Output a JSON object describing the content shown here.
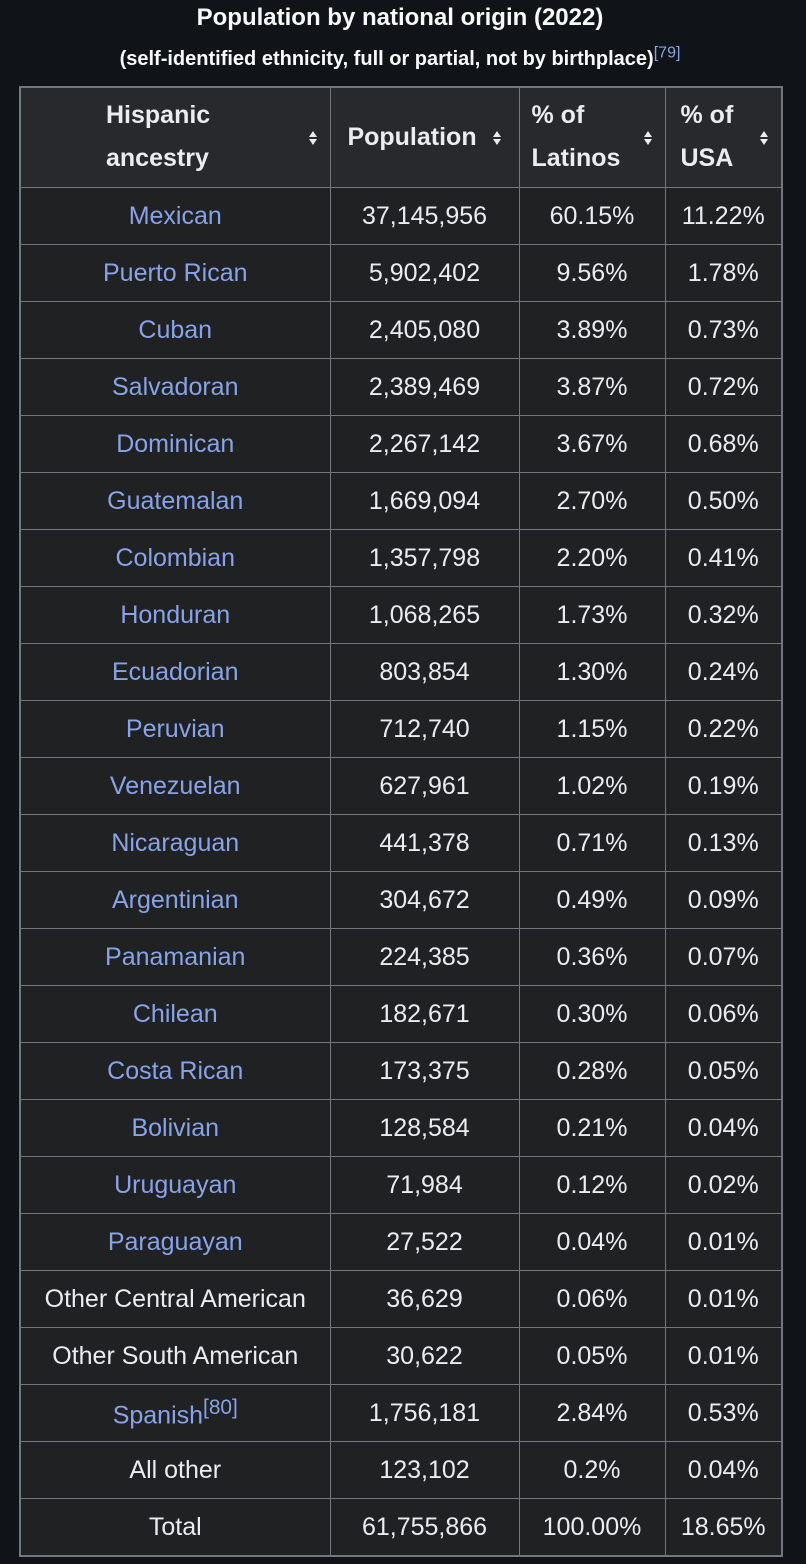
{
  "caption": {
    "title": "Population by national origin (2022)",
    "subtitle": "(self-identified ethnicity, full or partial, not by birthplace)",
    "subtitle_ref": "[79]"
  },
  "table": {
    "headers": [
      {
        "label": "Hispanic ancestry",
        "line1": "Hispanic",
        "line2": "ancestry"
      },
      {
        "label": "Population"
      },
      {
        "label": "% of Latinos",
        "line1": "% of",
        "line2": "Latinos"
      },
      {
        "label": "% of USA",
        "line1": "% of",
        "line2": "USA"
      }
    ],
    "rows": [
      {
        "ancestry": "Mexican",
        "population": "37,145,956",
        "pct_latinos": "60.15%",
        "pct_usa": "11.22%",
        "link": true
      },
      {
        "ancestry": "Puerto Rican",
        "population": "5,902,402",
        "pct_latinos": "9.56%",
        "pct_usa": "1.78%",
        "link": true
      },
      {
        "ancestry": "Cuban",
        "population": "2,405,080",
        "pct_latinos": "3.89%",
        "pct_usa": "0.73%",
        "link": true
      },
      {
        "ancestry": "Salvadoran",
        "population": "2,389,469",
        "pct_latinos": "3.87%",
        "pct_usa": "0.72%",
        "link": true
      },
      {
        "ancestry": "Dominican",
        "population": "2,267,142",
        "pct_latinos": "3.67%",
        "pct_usa": "0.68%",
        "link": true
      },
      {
        "ancestry": "Guatemalan",
        "population": "1,669,094",
        "pct_latinos": "2.70%",
        "pct_usa": "0.50%",
        "link": true
      },
      {
        "ancestry": "Colombian",
        "population": "1,357,798",
        "pct_latinos": "2.20%",
        "pct_usa": "0.41%",
        "link": true
      },
      {
        "ancestry": "Honduran",
        "population": "1,068,265",
        "pct_latinos": "1.73%",
        "pct_usa": "0.32%",
        "link": true
      },
      {
        "ancestry": "Ecuadorian",
        "population": "803,854",
        "pct_latinos": "1.30%",
        "pct_usa": "0.24%",
        "link": true
      },
      {
        "ancestry": "Peruvian",
        "population": "712,740",
        "pct_latinos": "1.15%",
        "pct_usa": "0.22%",
        "link": true
      },
      {
        "ancestry": "Venezuelan",
        "population": "627,961",
        "pct_latinos": "1.02%",
        "pct_usa": "0.19%",
        "link": true
      },
      {
        "ancestry": "Nicaraguan",
        "population": "441,378",
        "pct_latinos": "0.71%",
        "pct_usa": "0.13%",
        "link": true
      },
      {
        "ancestry": "Argentinian",
        "population": "304,672",
        "pct_latinos": "0.49%",
        "pct_usa": "0.09%",
        "link": true
      },
      {
        "ancestry": "Panamanian",
        "population": "224,385",
        "pct_latinos": "0.36%",
        "pct_usa": "0.07%",
        "link": true
      },
      {
        "ancestry": "Chilean",
        "population": "182,671",
        "pct_latinos": "0.30%",
        "pct_usa": "0.06%",
        "link": true
      },
      {
        "ancestry": "Costa Rican",
        "population": "173,375",
        "pct_latinos": "0.28%",
        "pct_usa": "0.05%",
        "link": true
      },
      {
        "ancestry": "Bolivian",
        "population": "128,584",
        "pct_latinos": "0.21%",
        "pct_usa": "0.04%",
        "link": true
      },
      {
        "ancestry": "Uruguayan",
        "population": "71,984",
        "pct_latinos": "0.12%",
        "pct_usa": "0.02%",
        "link": true
      },
      {
        "ancestry": "Paraguayan",
        "population": "27,522",
        "pct_latinos": "0.04%",
        "pct_usa": "0.01%",
        "link": true
      },
      {
        "ancestry": "Other Central American",
        "population": "36,629",
        "pct_latinos": "0.06%",
        "pct_usa": "0.01%",
        "link": false
      },
      {
        "ancestry": "Other South American",
        "population": "30,622",
        "pct_latinos": "0.05%",
        "pct_usa": "0.01%",
        "link": false
      },
      {
        "ancestry": "Spanish",
        "ref": "[80]",
        "population": "1,756,181",
        "pct_latinos": "2.84%",
        "pct_usa": "0.53%",
        "link": true
      },
      {
        "ancestry": "All other",
        "population": "123,102",
        "pct_latinos": "0.2%",
        "pct_usa": "0.04%",
        "link": false
      },
      {
        "ancestry": "Total",
        "population": "61,755,866",
        "pct_latinos": "100.00%",
        "pct_usa": "18.65%",
        "link": false
      }
    ]
  },
  "colors": {
    "background": "#101418",
    "table_bg": "#202122",
    "link": "#88a3e8",
    "text": "#eaecf0",
    "border": "#72777d"
  },
  "icons": {
    "sort": "sort-arrows-icon"
  }
}
